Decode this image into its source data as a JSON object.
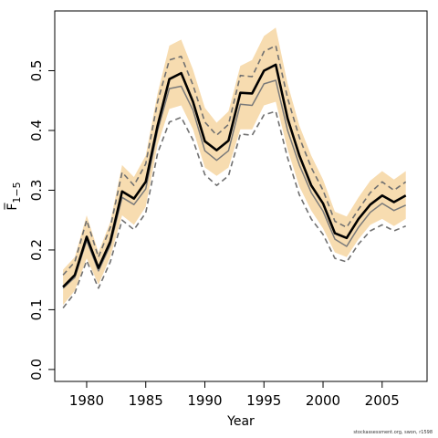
{
  "chart_data": {
    "type": "line",
    "xlabel": "Year",
    "ylabel": "F̅",
    "ylabel_sub": "1−5",
    "xlim": [
      1977.3,
      2008.8
    ],
    "ylim": [
      -0.02,
      0.6
    ],
    "x_ticks": [
      1980,
      1985,
      1990,
      1995,
      2000,
      2005
    ],
    "y_ticks": [
      0.0,
      0.1,
      0.2,
      0.3,
      0.4,
      0.5
    ],
    "y_tick_labels": [
      "0.0",
      "0.1",
      "0.2",
      "0.3",
      "0.4",
      "0.5"
    ],
    "grid": false,
    "x": [
      1978,
      1979,
      1980,
      1981,
      1982,
      1983,
      1984,
      1985,
      1986,
      1987,
      1988,
      1989,
      1990,
      1991,
      1992,
      1993,
      1994,
      1995,
      1996,
      1997,
      1998,
      1999,
      2000,
      2001,
      2002,
      2003,
      2004,
      2005,
      2006,
      2007
    ],
    "series": [
      {
        "role": "band_upper",
        "values": [
          0.167,
          0.188,
          0.258,
          0.196,
          0.247,
          0.342,
          0.322,
          0.358,
          0.462,
          0.542,
          0.552,
          0.502,
          0.438,
          0.413,
          0.432,
          0.508,
          0.518,
          0.558,
          0.572,
          0.478,
          0.408,
          0.358,
          0.318,
          0.264,
          0.256,
          0.288,
          0.316,
          0.332,
          0.318,
          0.332
        ]
      },
      {
        "role": "band_lower",
        "values": [
          0.108,
          0.132,
          0.186,
          0.142,
          0.188,
          0.258,
          0.242,
          0.272,
          0.376,
          0.436,
          0.442,
          0.402,
          0.338,
          0.324,
          0.338,
          0.402,
          0.402,
          0.442,
          0.448,
          0.368,
          0.306,
          0.266,
          0.236,
          0.196,
          0.188,
          0.218,
          0.242,
          0.252,
          0.24,
          0.252
        ]
      },
      {
        "role": "dashed_upper",
        "values": [
          0.158,
          0.18,
          0.25,
          0.188,
          0.238,
          0.33,
          0.308,
          0.344,
          0.448,
          0.518,
          0.524,
          0.476,
          0.414,
          0.392,
          0.41,
          0.492,
          0.49,
          0.532,
          0.542,
          0.454,
          0.388,
          0.338,
          0.3,
          0.248,
          0.238,
          0.268,
          0.296,
          0.314,
          0.3,
          0.314
        ]
      },
      {
        "role": "dashed_lower",
        "values": [
          0.103,
          0.128,
          0.182,
          0.136,
          0.18,
          0.25,
          0.234,
          0.262,
          0.362,
          0.414,
          0.422,
          0.384,
          0.326,
          0.308,
          0.324,
          0.394,
          0.392,
          0.426,
          0.432,
          0.354,
          0.292,
          0.252,
          0.226,
          0.186,
          0.18,
          0.21,
          0.232,
          0.242,
          0.232,
          0.24
        ]
      },
      {
        "role": "gray_line",
        "values": [
          0.136,
          0.154,
          0.216,
          0.165,
          0.208,
          0.288,
          0.276,
          0.302,
          0.4,
          0.47,
          0.474,
          0.434,
          0.366,
          0.35,
          0.366,
          0.444,
          0.442,
          0.478,
          0.484,
          0.4,
          0.342,
          0.296,
          0.265,
          0.218,
          0.206,
          0.238,
          0.263,
          0.278,
          0.266,
          0.275
        ]
      },
      {
        "role": "main_line",
        "values": [
          0.138,
          0.158,
          0.222,
          0.17,
          0.214,
          0.298,
          0.286,
          0.314,
          0.408,
          0.486,
          0.496,
          0.448,
          0.382,
          0.367,
          0.383,
          0.463,
          0.462,
          0.5,
          0.51,
          0.42,
          0.358,
          0.308,
          0.278,
          0.228,
          0.22,
          0.252,
          0.276,
          0.291,
          0.28,
          0.291
        ]
      }
    ],
    "colors": {
      "band": "#f7dcb0",
      "main_line": "#000000",
      "gray_line": "#7a7a7a",
      "dashed": "#707070",
      "axis": "#000000"
    }
  },
  "footer": {
    "text": "stockassessment.org, swon, r1598"
  }
}
